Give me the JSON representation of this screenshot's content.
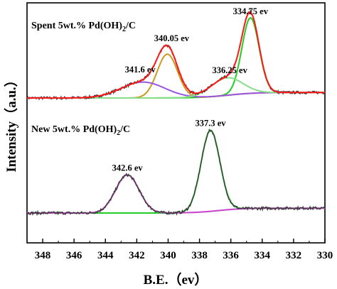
{
  "chart_data": {
    "type": "line",
    "xlabel": "B.E.（ev）",
    "ylabel": "Intensity（a.u.）",
    "xlim": [
      349,
      330
    ],
    "x_ticks": [
      348,
      346,
      344,
      342,
      340,
      338,
      336,
      334,
      332,
      330
    ],
    "grid": false,
    "panels": [
      {
        "label_main": "Spent 5wt.% Pd(OH)",
        "label_sub": "2",
        "label_end": "/C",
        "baseline": 0.72,
        "peak_height": 1.0,
        "annotations": [
          {
            "text": "334.75 ev",
            "x": 334.75
          },
          {
            "text": "340.05 ev",
            "x": 340.05
          },
          {
            "text": "341.6 ev",
            "x": 341.6
          },
          {
            "text": "336.25 ev",
            "x": 336.25
          }
        ],
        "series": [
          {
            "role": "raw",
            "color": "#3a3a3a"
          },
          {
            "role": "envelope",
            "color": "#ff1a1a"
          },
          {
            "role": "component",
            "center": 334.75,
            "height": 0.95,
            "width": 0.55,
            "color": "#22cc22"
          },
          {
            "role": "component",
            "center": 340.05,
            "height": 0.55,
            "width": 0.65,
            "color": "#cc9a20"
          },
          {
            "role": "component",
            "center": 341.6,
            "height": 0.2,
            "width": 1.4,
            "color": "#9a55e0"
          },
          {
            "role": "component",
            "center": 336.25,
            "height": 0.22,
            "width": 1.0,
            "color": "#88dd88"
          },
          {
            "role": "background",
            "color": "#40e0c0"
          }
        ]
      },
      {
        "label_main": "New 5wt.% Pd(OH)",
        "label_sub": "2",
        "label_end": "/C",
        "baseline": 0.1,
        "annotations": [
          {
            "text": "337.3 ev",
            "x": 337.3
          },
          {
            "text": "342.6 ev",
            "x": 342.6
          }
        ],
        "series": [
          {
            "role": "raw",
            "color": "#3a3a3a"
          },
          {
            "role": "component",
            "center": 337.3,
            "height": 1.0,
            "width": 0.6,
            "color": "#22cc22"
          },
          {
            "role": "component",
            "center": 342.6,
            "height": 0.47,
            "width": 0.75,
            "color": "#cc44cc"
          },
          {
            "role": "background",
            "color": "#4060ff"
          }
        ]
      }
    ]
  }
}
